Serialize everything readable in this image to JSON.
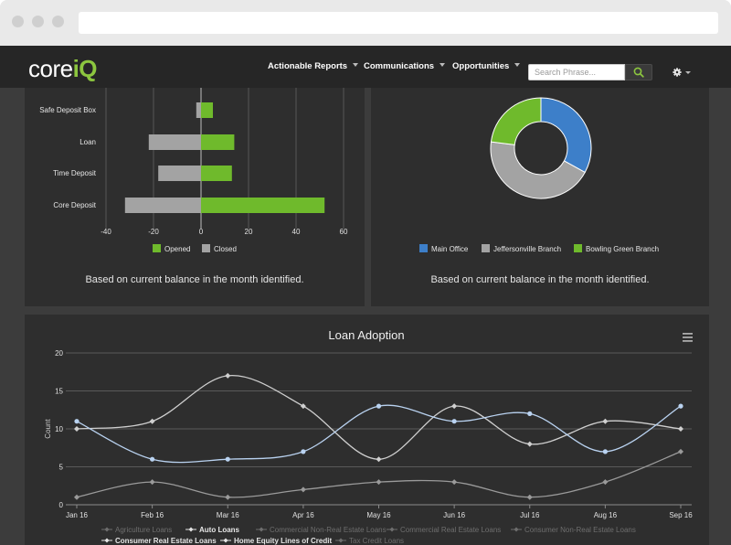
{
  "app": {
    "logo_core": "core",
    "logo_iq": "iQ",
    "nav": [
      {
        "label": "Actionable Reports"
      },
      {
        "label": "Communications"
      },
      {
        "label": "Opportunities"
      }
    ],
    "search": {
      "placeholder": "Search Phrase..."
    }
  },
  "bar_panel": {
    "caption": "Based on current balance in the month identified."
  },
  "donut_panel": {
    "caption": "Based on current balance in the month identified."
  },
  "colors": {
    "green": "#6fba2c",
    "gray": "#a3a3a3",
    "blue": "#3d7fc9",
    "accent": "#8cc63f"
  },
  "chart_data": [
    {
      "type": "bar",
      "orientation": "horizontal",
      "categories": [
        "Safe Deposit Box",
        "Loan",
        "Time Deposit",
        "Core Deposit"
      ],
      "series": [
        {
          "name": "Opened",
          "values": [
            5,
            14,
            13,
            52
          ],
          "color": "#6fba2c"
        },
        {
          "name": "Closed",
          "values": [
            -2,
            -22,
            -18,
            -32
          ],
          "color": "#a3a3a3"
        }
      ],
      "xlim": [
        -40,
        60
      ],
      "xticks": [
        -40,
        -20,
        0,
        20,
        40,
        60
      ],
      "legend": "bottom"
    },
    {
      "type": "pie",
      "donut": true,
      "labels": [
        "Main Office",
        "Jeffersonville Branch",
        "Bowling Green Branch"
      ],
      "values": [
        33,
        44,
        23
      ],
      "colors": [
        "#3d7fc9",
        "#a3a3a3",
        "#6fba2c"
      ],
      "legend": "bottom"
    },
    {
      "type": "line",
      "title": "Loan Adoption",
      "ylabel": "Count",
      "x": [
        "Jan 16",
        "Feb 16",
        "Mar 16",
        "Apr 16",
        "May 16",
        "Jun 16",
        "Jul 16",
        "Aug 16",
        "Sep 16"
      ],
      "ylim": [
        0,
        20
      ],
      "yticks": [
        0,
        5,
        10,
        15,
        20
      ],
      "series": [
        {
          "name": "Auto Loans",
          "values": [
            10,
            11,
            17,
            13,
            6,
            13,
            8,
            11,
            10
          ],
          "color": "#cfcfcf",
          "marker": "diamond"
        },
        {
          "name": "Consumer Real Estate Loans",
          "values": [
            11,
            6,
            6,
            7,
            13,
            11,
            12,
            7,
            13
          ],
          "color": "#b9d2f0",
          "marker": "circle"
        },
        {
          "name": "Home Equity Lines of Credit",
          "values": [
            1,
            3,
            1,
            2,
            3,
            3,
            1,
            3,
            7
          ],
          "color": "#9a9a9a",
          "marker": "diamond"
        }
      ],
      "legend_items": [
        {
          "label": "Agriculture Loans",
          "active": false
        },
        {
          "label": "Auto Loans",
          "active": true
        },
        {
          "label": "Commercial Non-Real Estate Loans",
          "active": false
        },
        {
          "label": "Commercial Real Estate Loans",
          "active": false
        },
        {
          "label": "Consumer Non-Real Estate Loans",
          "active": false
        },
        {
          "label": "Consumer Real Estate Loans",
          "active": true
        },
        {
          "label": "Home Equity Lines of Credit",
          "active": true
        },
        {
          "label": "Tax Credit Loans",
          "active": false
        }
      ],
      "legend": "bottom"
    }
  ]
}
